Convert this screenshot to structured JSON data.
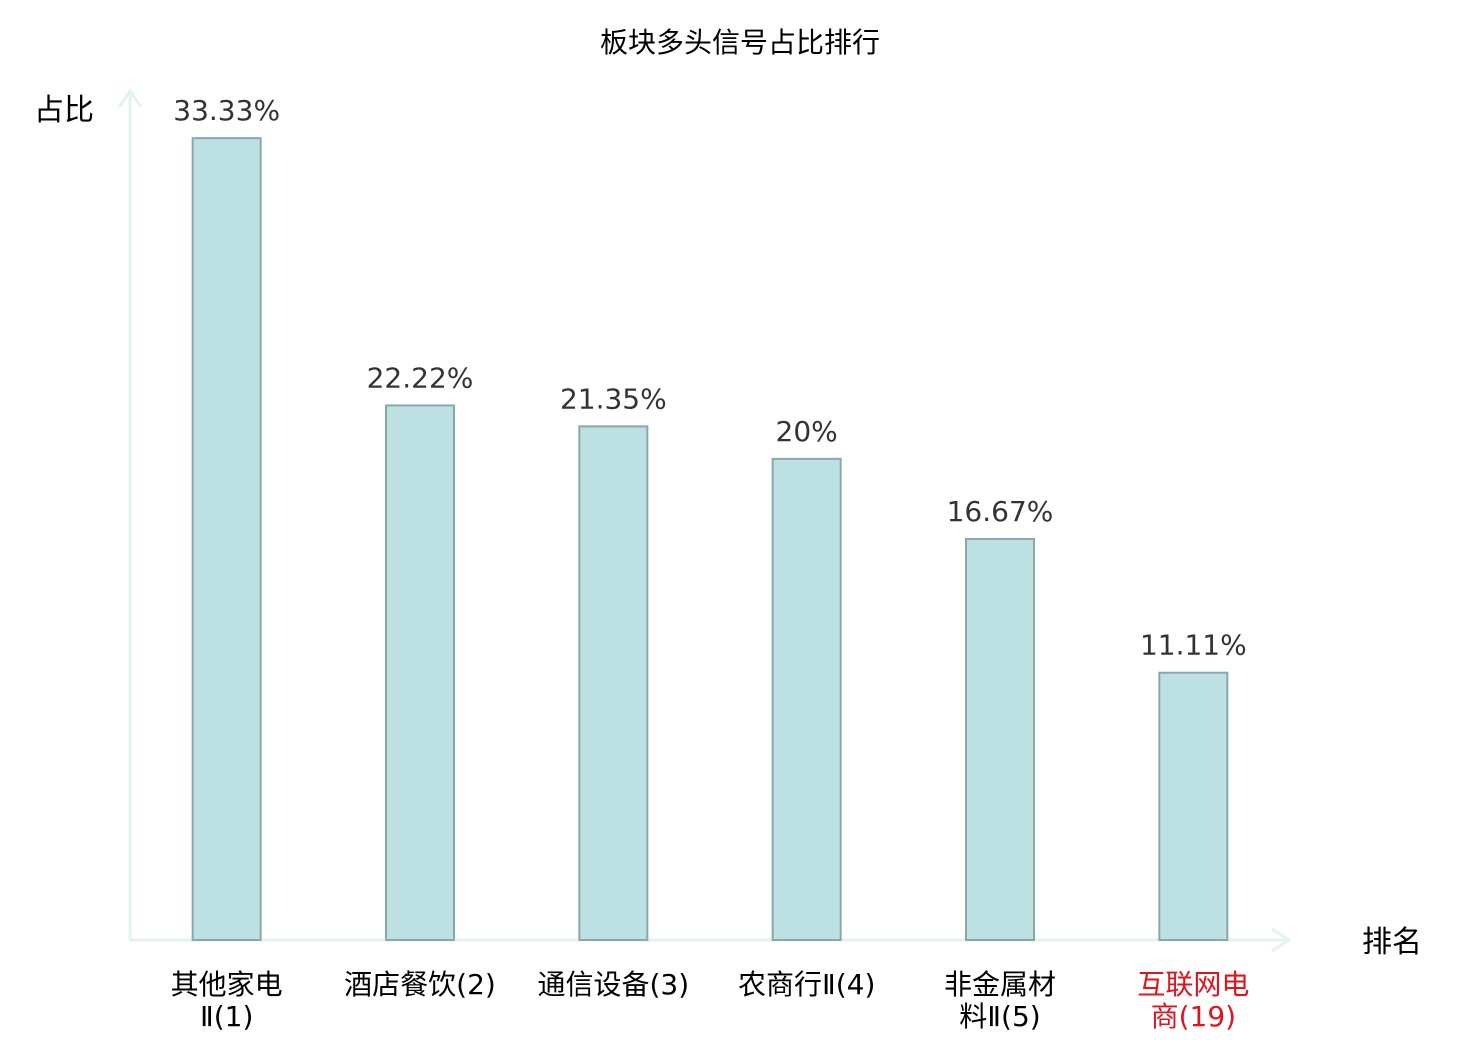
{
  "chart_data": {
    "type": "bar",
    "title": "板块多头信号占比排行",
    "ylabel": "占比",
    "xlabel": "排名",
    "ylim": [
      0,
      34.5
    ],
    "grid": false,
    "categories": [
      {
        "lines": [
          "其他家电",
          "Ⅱ(1)"
        ],
        "highlight": false
      },
      {
        "lines": [
          "酒店餐饮(2)"
        ],
        "highlight": false
      },
      {
        "lines": [
          "通信设备(3)"
        ],
        "highlight": false
      },
      {
        "lines": [
          "农商行Ⅱ(4)"
        ],
        "highlight": false
      },
      {
        "lines": [
          "非金属材",
          "料Ⅱ(5)"
        ],
        "highlight": false
      },
      {
        "lines": [
          "互联网电",
          "商(19)"
        ],
        "highlight": true
      }
    ],
    "values": [
      33.33,
      22.22,
      21.35,
      20,
      16.67,
      11.11
    ],
    "value_labels": [
      "33.33%",
      "22.22%",
      "21.35%",
      "20%",
      "16.67%",
      "11.11%"
    ],
    "colors": {
      "bar_fill": "#bde0e3",
      "bar_stroke": "#8aa8aa",
      "axis": "#e2f3f1",
      "text": "#333333",
      "highlight_text": "#e0141e"
    }
  }
}
